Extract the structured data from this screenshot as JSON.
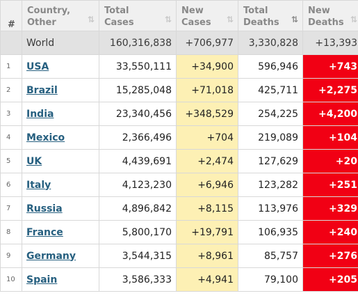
{
  "columns": [
    {
      "label": "#",
      "sort_icon": ""
    },
    {
      "label": "Country,\nOther",
      "sort_icon": "⇅"
    },
    {
      "label": "Total\nCases",
      "sort_icon": "⇅"
    },
    {
      "label": "New\nCases",
      "sort_icon": "⇅"
    },
    {
      "label": "Total\nDeaths",
      "sort_icon": "⇅"
    },
    {
      "label": "New\nDeaths",
      "sort_icon": "⇅"
    }
  ],
  "world": {
    "name": "World",
    "total_cases": "160,316,838",
    "new_cases": "+706,977",
    "total_deaths": "3,330,828",
    "new_deaths": "+13,393"
  },
  "rows": [
    {
      "rank": "1",
      "country": "USA",
      "total_cases": "33,550,111",
      "new_cases": "+34,900",
      "total_deaths": "596,946",
      "new_deaths": "+743"
    },
    {
      "rank": "2",
      "country": "Brazil",
      "total_cases": "15,285,048",
      "new_cases": "+71,018",
      "total_deaths": "425,711",
      "new_deaths": "+2,275"
    },
    {
      "rank": "3",
      "country": "India",
      "total_cases": "23,340,456",
      "new_cases": "+348,529",
      "total_deaths": "254,225",
      "new_deaths": "+4,200"
    },
    {
      "rank": "4",
      "country": "Mexico",
      "total_cases": "2,366,496",
      "new_cases": "+704",
      "total_deaths": "219,089",
      "new_deaths": "+104"
    },
    {
      "rank": "5",
      "country": "UK",
      "total_cases": "4,439,691",
      "new_cases": "+2,474",
      "total_deaths": "127,629",
      "new_deaths": "+20"
    },
    {
      "rank": "6",
      "country": "Italy",
      "total_cases": "4,123,230",
      "new_cases": "+6,946",
      "total_deaths": "123,282",
      "new_deaths": "+251"
    },
    {
      "rank": "7",
      "country": "Russia",
      "total_cases": "4,896,842",
      "new_cases": "+8,115",
      "total_deaths": "113,976",
      "new_deaths": "+329"
    },
    {
      "rank": "8",
      "country": "France",
      "total_cases": "5,800,170",
      "new_cases": "+19,791",
      "total_deaths": "106,935",
      "new_deaths": "+240"
    },
    {
      "rank": "9",
      "country": "Germany",
      "total_cases": "3,544,315",
      "new_cases": "+8,961",
      "total_deaths": "85,757",
      "new_deaths": "+276"
    },
    {
      "rank": "10",
      "country": "Spain",
      "total_cases": "3,586,333",
      "new_cases": "+4,941",
      "total_deaths": "79,100",
      "new_deaths": "+205"
    }
  ],
  "colors": {
    "new_cases_bg": "#fdf0b4",
    "new_deaths_bg": "#f10014",
    "link": "#276080",
    "world_row_bg": "#e2e2e2"
  }
}
